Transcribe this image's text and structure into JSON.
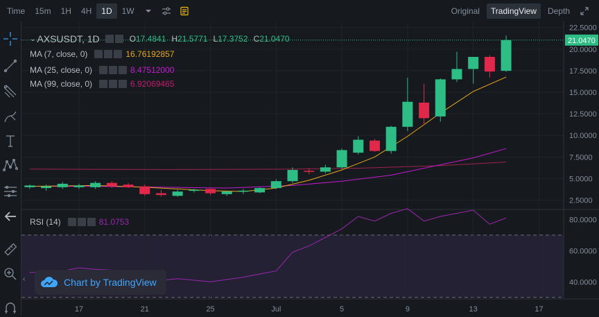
{
  "intervals": [
    "Time",
    "15m",
    "1H",
    "4H",
    "1D",
    "1W"
  ],
  "active_interval": "1D",
  "views": [
    "Original",
    "TradingView",
    "Depth"
  ],
  "active_view": "TradingView",
  "legend": {
    "symbol": "AXSUSDT, 1D",
    "o_label": "O",
    "o": "17.4841",
    "h_label": "H",
    "h": "21.5771",
    "l_label": "L",
    "l": "17.3752",
    "c_label": "C",
    "c": "21.0470",
    "ma7_label": "MA (7, close, 0)",
    "ma7": "16.76192857",
    "ma25_label": "MA (25, close, 0)",
    "ma25": "8.47512000",
    "ma99_label": "MA (99, close, 0)",
    "ma99": "6.92069465",
    "rsi_label": "RSI (14)",
    "rsi": "81.0753"
  },
  "watermark": "Chart by TradingView",
  "colors": {
    "up": "#2ebd85",
    "down": "#e0294a",
    "ma7": "#e8a91c",
    "ma25": "#c41bd0",
    "ma99": "#a0214e",
    "rsi": "#9b27b0",
    "last_price": "#2ebd85"
  },
  "chart_data": {
    "type": "candlestick",
    "price_ticks": [
      "22.5000",
      "20.0000",
      "17.5000",
      "15.0000",
      "12.5000",
      "10.0000",
      "7.5000",
      "5.0000",
      "2.5000"
    ],
    "price_tick_values": [
      22.5,
      20,
      17.5,
      15,
      12.5,
      10,
      7.5,
      5,
      2.5
    ],
    "last_price_label": "21.0470",
    "last_price": 21.047,
    "price_ylim": [
      1.5,
      23.2
    ],
    "rsi_ticks": [
      "80.0000",
      "60.0000",
      "40.0000"
    ],
    "rsi_tick_values": [
      80,
      60,
      40
    ],
    "rsi_ylim": [
      29,
      86
    ],
    "rsi_bands": [
      70,
      30
    ],
    "x_ticks": [
      "17",
      "21",
      "25",
      "Jul",
      "5",
      "9",
      "13",
      "17"
    ],
    "x_tick_values": [
      -11,
      -7,
      -3,
      1,
      5,
      9,
      13,
      17
    ],
    "x_range": [
      -14.5,
      18.5
    ],
    "candles": [
      {
        "x": -14,
        "o": 4.0,
        "h": 4.3,
        "l": 3.8,
        "c": 4.2
      },
      {
        "x": -13,
        "o": 3.9,
        "h": 4.3,
        "l": 3.6,
        "c": 4.1
      },
      {
        "x": -12,
        "o": 4.0,
        "h": 4.6,
        "l": 3.8,
        "c": 4.4
      },
      {
        "x": -11,
        "o": 4.0,
        "h": 4.4,
        "l": 3.8,
        "c": 4.2
      },
      {
        "x": -10,
        "o": 4.0,
        "h": 4.7,
        "l": 3.8,
        "c": 4.5
      },
      {
        "x": -9,
        "o": 4.5,
        "h": 4.7,
        "l": 3.9,
        "c": 4.1
      },
      {
        "x": -8,
        "o": 4.3,
        "h": 4.5,
        "l": 3.9,
        "c": 4.0
      },
      {
        "x": -7,
        "o": 4.1,
        "h": 4.3,
        "l": 3.0,
        "c": 3.2
      },
      {
        "x": -6,
        "o": 3.3,
        "h": 3.7,
        "l": 2.9,
        "c": 3.1
      },
      {
        "x": -5,
        "o": 3.0,
        "h": 3.7,
        "l": 2.9,
        "c": 3.5
      },
      {
        "x": -4,
        "o": 3.6,
        "h": 3.8,
        "l": 3.4,
        "c": 3.7
      },
      {
        "x": -3,
        "o": 3.8,
        "h": 3.9,
        "l": 3.1,
        "c": 3.3
      },
      {
        "x": -2,
        "o": 3.2,
        "h": 3.6,
        "l": 3.0,
        "c": 3.5
      },
      {
        "x": -1,
        "o": 3.5,
        "h": 3.8,
        "l": 3.2,
        "c": 3.6
      },
      {
        "x": 0,
        "o": 3.4,
        "h": 4.0,
        "l": 3.3,
        "c": 3.9
      },
      {
        "x": 1,
        "o": 3.9,
        "h": 4.9,
        "l": 3.8,
        "c": 4.7
      },
      {
        "x": 2,
        "o": 4.7,
        "h": 6.3,
        "l": 4.5,
        "c": 6.0
      },
      {
        "x": 3,
        "o": 5.9,
        "h": 6.2,
        "l": 5.5,
        "c": 5.8
      },
      {
        "x": 4,
        "o": 5.8,
        "h": 6.6,
        "l": 5.6,
        "c": 6.3
      },
      {
        "x": 5,
        "o": 6.3,
        "h": 8.5,
        "l": 6.1,
        "c": 8.3
      },
      {
        "x": 6,
        "o": 8.0,
        "h": 9.9,
        "l": 7.8,
        "c": 9.5
      },
      {
        "x": 7,
        "o": 9.4,
        "h": 9.6,
        "l": 8.1,
        "c": 8.2
      },
      {
        "x": 8,
        "o": 8.2,
        "h": 11.1,
        "l": 7.9,
        "c": 11.0
      },
      {
        "x": 9,
        "o": 11.0,
        "h": 16.7,
        "l": 10.5,
        "c": 13.9
      },
      {
        "x": 10,
        "o": 13.8,
        "h": 16.0,
        "l": 11.2,
        "c": 12.0
      },
      {
        "x": 11,
        "o": 12.2,
        "h": 16.6,
        "l": 11.6,
        "c": 16.5
      },
      {
        "x": 12,
        "o": 16.5,
        "h": 19.7,
        "l": 16.2,
        "c": 17.7
      },
      {
        "x": 13,
        "o": 17.7,
        "h": 19.1,
        "l": 16.0,
        "c": 19.1
      },
      {
        "x": 14,
        "o": 19.1,
        "h": 19.3,
        "l": 16.7,
        "c": 17.4
      },
      {
        "x": 15,
        "o": 17.4841,
        "h": 21.5771,
        "l": 17.3752,
        "c": 21.047
      }
    ],
    "series": [
      {
        "name": "MA (7, close, 0)",
        "x": [
          -14,
          -10,
          -7,
          -5,
          -3,
          -1,
          1,
          3,
          5,
          7,
          9,
          11,
          13,
          15
        ],
        "values": [
          4.1,
          4.2,
          4.0,
          3.8,
          3.6,
          3.5,
          3.9,
          4.8,
          6.0,
          7.5,
          9.9,
          12.6,
          15.1,
          16.76
        ]
      },
      {
        "name": "MA (25, close, 0)",
        "x": [
          -14,
          -10,
          -6,
          -2,
          2,
          5,
          8,
          11,
          13,
          15
        ],
        "values": [
          4.1,
          4.1,
          4.0,
          3.9,
          4.2,
          4.7,
          5.4,
          6.6,
          7.4,
          8.48
        ]
      },
      {
        "name": "MA (99, close, 0)",
        "x": [
          -14,
          -6,
          1,
          6,
          11,
          15
        ],
        "values": [
          6.1,
          6.05,
          6.08,
          6.2,
          6.5,
          6.92
        ]
      },
      {
        "name": "RSI (14)",
        "x": [
          -14,
          -12,
          -11,
          -10,
          -8,
          -7,
          -6,
          -5,
          -3,
          -1,
          1,
          2,
          3,
          5,
          6,
          7,
          8,
          9,
          10,
          11,
          12,
          13,
          14,
          15
        ],
        "values": [
          46,
          47,
          49,
          48,
          47,
          43,
          41,
          42,
          40,
          43,
          47,
          59,
          63,
          74,
          82,
          79,
          84,
          87,
          79,
          82,
          84,
          86,
          77,
          81.0753
        ]
      }
    ]
  }
}
